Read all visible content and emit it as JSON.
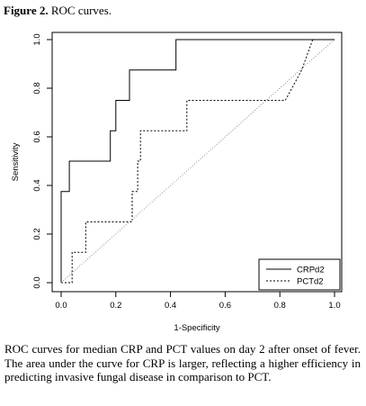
{
  "figure": {
    "label": "Figure 2.",
    "title": "ROC curves."
  },
  "caption": "ROC curves for median CRP and PCT values on day 2 after onset of fever. The area under the curve for CRP is larger, reflecting a higher efficiency in predicting invasive fungal disease in comparison to PCT.",
  "chart_data": {
    "type": "line",
    "xlabel": "1-Specificity",
    "ylabel": "Sensitivity",
    "xlim": [
      0,
      1
    ],
    "ylim": [
      0,
      1
    ],
    "xticks": [
      "0.0",
      "0.2",
      "0.4",
      "0.6",
      "0.8",
      "1.0"
    ],
    "yticks": [
      "0.0",
      "0.2",
      "0.4",
      "0.6",
      "0.8",
      "1.0"
    ],
    "grid": false,
    "legend": "bottom-right",
    "series": [
      {
        "name": "CRPd2",
        "style": "solid",
        "color": "#000000",
        "x": [
          0,
          0,
          0.03,
          0.03,
          0.18,
          0.18,
          0.2,
          0.2,
          0.25,
          0.25,
          0.42,
          0.42,
          1.0
        ],
        "y": [
          0,
          0.375,
          0.375,
          0.5,
          0.5,
          0.625,
          0.625,
          0.75,
          0.75,
          0.875,
          0.875,
          1.0,
          1.0
        ]
      },
      {
        "name": "PCTd2",
        "style": "dotted",
        "color": "#000000",
        "x": [
          0,
          0.04,
          0.04,
          0.09,
          0.09,
          0.26,
          0.26,
          0.28,
          0.28,
          0.29,
          0.29,
          0.46,
          0.46,
          0.82,
          0.88,
          0.92,
          0.92,
          1.0
        ],
        "y": [
          0,
          0,
          0.125,
          0.125,
          0.25,
          0.25,
          0.375,
          0.375,
          0.5,
          0.5,
          0.625,
          0.625,
          0.75,
          0.75,
          0.875,
          1.0,
          1.0,
          1.0
        ]
      },
      {
        "name": "",
        "style": "dotted-reference",
        "color": "#808080",
        "x": [
          0,
          1
        ],
        "y": [
          0,
          1
        ]
      }
    ]
  }
}
